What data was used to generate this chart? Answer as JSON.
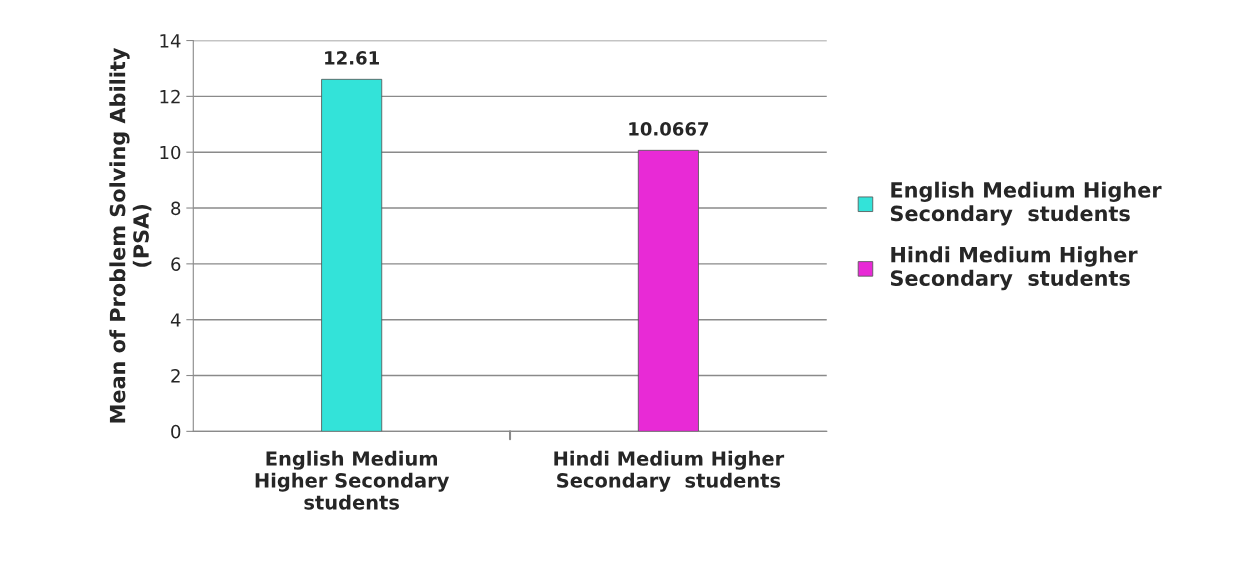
{
  "chart_data": {
    "type": "bar",
    "ylabel": "Mean of Problem Solving Ability\n(PSA)",
    "categories": [
      "English Medium\nHigher Secondary\nstudents",
      "Hindi Medium Higher\nSecondary  students"
    ],
    "series": [
      {
        "name": "English Medium Higher\nSecondary  students",
        "color": "#33e3d9",
        "values": [
          12.61,
          null
        ]
      },
      {
        "name": "Hindi Medium Higher\nSecondary  students",
        "color": "#e82ad6",
        "values": [
          null,
          10.0667
        ]
      }
    ],
    "ylim": [
      0,
      14
    ],
    "yticks": [
      0,
      2,
      4,
      6,
      8,
      10,
      12,
      14
    ],
    "grid": "y",
    "legend": "right",
    "data_labels": true
  }
}
